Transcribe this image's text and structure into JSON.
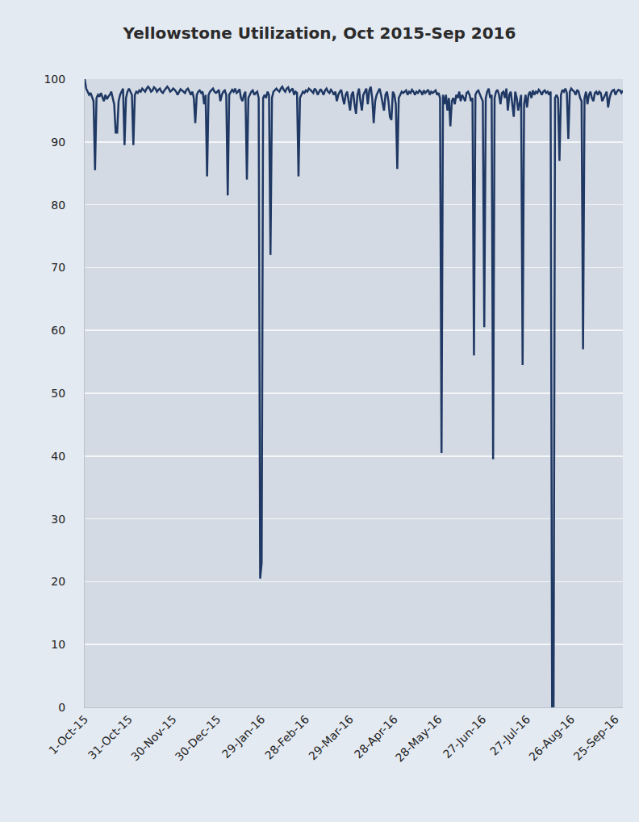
{
  "chart_data": {
    "type": "line",
    "title": "Yellowstone Utilization, Oct 2015-Sep 2016",
    "categories": [
      "1-Oct-15",
      null,
      null,
      null,
      null,
      null,
      null,
      null,
      null,
      null,
      null,
      null,
      null,
      null,
      null,
      null,
      null,
      null,
      null,
      null,
      null,
      null,
      null,
      null,
      null,
      null,
      null,
      null,
      null,
      null,
      "31-Oct-15",
      null,
      null,
      null,
      null,
      null,
      null,
      null,
      null,
      null,
      null,
      null,
      null,
      null,
      null,
      null,
      null,
      null,
      null,
      null,
      null,
      null,
      null,
      null,
      null,
      null,
      null,
      null,
      null,
      null,
      "30-Nov-15",
      null,
      null,
      null,
      null,
      null,
      null,
      null,
      null,
      null,
      null,
      null,
      null,
      null,
      null,
      null,
      null,
      null,
      null,
      null,
      null,
      null,
      null,
      null,
      null,
      null,
      null,
      null,
      null,
      null,
      "30-Dec-15",
      null,
      null,
      null,
      null,
      null,
      null,
      null,
      null,
      null,
      null,
      null,
      null,
      null,
      null,
      null,
      null,
      null,
      null,
      null,
      null,
      null,
      null,
      null,
      null,
      null,
      null,
      null,
      null,
      null,
      "29-Jan-16",
      null,
      null,
      null,
      null,
      null,
      null,
      null,
      null,
      null,
      null,
      null,
      null,
      null,
      null,
      null,
      null,
      null,
      null,
      null,
      null,
      null,
      null,
      null,
      null,
      null,
      null,
      null,
      null,
      null,
      "28-Feb-16",
      null,
      null,
      null,
      null,
      null,
      null,
      null,
      null,
      null,
      null,
      null,
      null,
      null,
      null,
      null,
      null,
      null,
      null,
      null,
      null,
      null,
      null,
      null,
      null,
      null,
      null,
      null,
      null,
      null,
      "29-Mar-16",
      null,
      null,
      null,
      null,
      null,
      null,
      null,
      null,
      null,
      null,
      null,
      null,
      null,
      null,
      null,
      null,
      null,
      null,
      null,
      null,
      null,
      null,
      null,
      null,
      null,
      null,
      null,
      null,
      null,
      "28-Apr-16",
      null,
      null,
      null,
      null,
      null,
      null,
      null,
      null,
      null,
      null,
      null,
      null,
      null,
      null,
      null,
      null,
      null,
      null,
      null,
      null,
      null,
      null,
      null,
      null,
      null,
      null,
      null,
      null,
      null,
      "28-May-16",
      null,
      null,
      null,
      null,
      null,
      null,
      null,
      null,
      null,
      null,
      null,
      null,
      null,
      null,
      null,
      null,
      null,
      null,
      null,
      null,
      null,
      null,
      null,
      null,
      null,
      null,
      null,
      null,
      null,
      "27-Jun-16",
      null,
      null,
      null,
      null,
      null,
      null,
      null,
      null,
      null,
      null,
      null,
      null,
      null,
      null,
      null,
      null,
      null,
      null,
      null,
      null,
      null,
      null,
      null,
      null,
      null,
      null,
      null,
      null,
      null,
      "27-Jul-16",
      null,
      null,
      null,
      null,
      null,
      null,
      null,
      null,
      null,
      null,
      null,
      null,
      null,
      null,
      null,
      null,
      null,
      null,
      null,
      null,
      null,
      null,
      null,
      null,
      null,
      null,
      null,
      null,
      null,
      "26-Aug-16",
      null,
      null,
      null,
      null,
      null,
      null,
      null,
      null,
      null,
      null,
      null,
      null,
      null,
      null,
      null,
      null,
      null,
      null,
      null,
      null,
      null,
      null,
      null,
      null,
      null,
      null,
      null,
      null,
      null,
      "25-Sep-16",
      null,
      null,
      null,
      null,
      null
    ],
    "values": [
      100,
      98.5,
      98,
      97.5,
      97.8,
      97,
      96.5,
      85.5,
      97,
      97.5,
      97.2,
      97.8,
      97,
      96.5,
      97.5,
      96.8,
      97.2,
      97.5,
      98,
      97,
      96,
      91.5,
      91.5,
      96.5,
      97.5,
      98,
      98.5,
      89.5,
      97,
      98,
      98.5,
      98,
      97.5,
      89.5,
      97.5,
      98,
      97.8,
      98.2,
      98,
      98.5,
      98.2,
      98,
      98.5,
      98.8,
      98.5,
      98,
      98.2,
      98.7,
      98.5,
      98,
      98.3,
      98.5,
      98,
      97.8,
      98.2,
      98.5,
      98.8,
      98.5,
      98,
      98.2,
      98.5,
      98.3,
      98,
      97.5,
      98,
      98.4,
      98.2,
      98,
      97.8,
      98.3,
      98.5,
      98,
      97.5,
      98,
      97,
      93,
      97.5,
      98,
      98.2,
      97.8,
      98,
      96,
      97.5,
      84.5,
      97.5,
      98,
      98.2,
      98.5,
      98,
      97.8,
      98,
      98.3,
      96.5,
      97.5,
      98,
      98.2,
      97.5,
      81.5,
      97.5,
      98,
      98.3,
      98,
      98.5,
      97.8,
      98,
      98.4,
      97,
      96.5,
      97.5,
      98,
      84,
      97,
      97.5,
      98,
      98.2,
      97.5,
      97.8,
      98,
      97,
      20.5,
      23,
      97,
      97.5,
      97,
      98,
      97.5,
      72,
      97,
      98,
      98.2,
      98.5,
      98.2,
      98,
      98.5,
      98.8,
      98.3,
      98,
      98.5,
      98.7,
      98,
      98.3,
      98.5,
      97.5,
      98,
      97.8,
      84.5,
      97,
      97.5,
      98,
      97.8,
      98.2,
      98,
      98.5,
      98.3,
      98,
      97.8,
      98.5,
      98.2,
      97.5,
      98,
      98.4,
      98,
      97.5,
      98.2,
      98.5,
      98,
      97.8,
      98.3,
      98,
      97.5,
      98,
      96.5,
      97.5,
      98,
      98.3,
      97,
      96,
      97.5,
      98,
      96.5,
      95,
      97.5,
      98,
      96,
      94.5,
      97.5,
      98.5,
      96.5,
      95,
      97.5,
      98,
      98.5,
      96,
      98.2,
      98.8,
      97,
      93,
      96.5,
      97.5,
      98,
      98.5,
      97.5,
      96,
      95,
      97.5,
      98,
      96.5,
      94,
      93.5,
      98,
      97.5,
      96,
      85.7,
      97,
      97.5,
      98,
      97.8,
      98,
      98.2,
      97.5,
      98,
      97.8,
      98.3,
      98,
      97.5,
      98,
      97.8,
      98.2,
      98,
      97.5,
      98.2,
      97.8,
      98,
      98.3,
      97.5,
      98,
      97.8,
      98,
      98.2,
      97.5,
      97.8,
      97,
      40.5,
      97.5,
      96,
      97.5,
      95,
      97,
      92.5,
      96.5,
      97,
      96,
      97.5,
      97,
      98,
      96.5,
      97.5,
      97,
      96.5,
      97.8,
      98,
      97.5,
      96.5,
      97,
      56,
      97.5,
      98,
      98.2,
      97.5,
      97,
      96.5,
      60.5,
      97,
      98,
      98.5,
      97,
      97.5,
      39.5,
      97,
      98,
      98.3,
      97.5,
      96,
      97.8,
      98,
      97,
      98.5,
      95,
      97.5,
      98,
      96,
      94,
      98,
      97,
      95,
      96.5,
      97.5,
      54.5,
      96,
      97.5,
      95.5,
      97.5,
      98,
      97,
      98.2,
      97.5,
      98,
      97.8,
      98.3,
      98,
      97.5,
      98,
      98.2,
      97.8,
      98,
      97.5,
      98,
      0,
      0,
      97,
      97.5,
      97,
      87,
      97.5,
      98.3,
      98,
      98.5,
      97.8,
      90.5,
      98,
      98.5,
      98.2,
      98,
      97.5,
      98.3,
      98,
      97,
      96.5,
      57,
      97,
      98,
      96,
      97.5,
      98,
      97,
      96.5,
      97.8,
      98,
      97.5,
      98,
      97.8,
      96.5,
      97,
      97.5,
      98,
      95.5,
      97,
      97.8,
      98.2,
      98.3,
      97.5,
      98,
      98.3,
      98.2,
      97.8,
      98.2
    ],
    "color": "#1f3864",
    "ylim": [
      0,
      100
    ],
    "yticks": [
      0,
      10,
      20,
      30,
      40,
      50,
      60,
      70,
      80,
      90,
      100
    ],
    "grid": true
  }
}
